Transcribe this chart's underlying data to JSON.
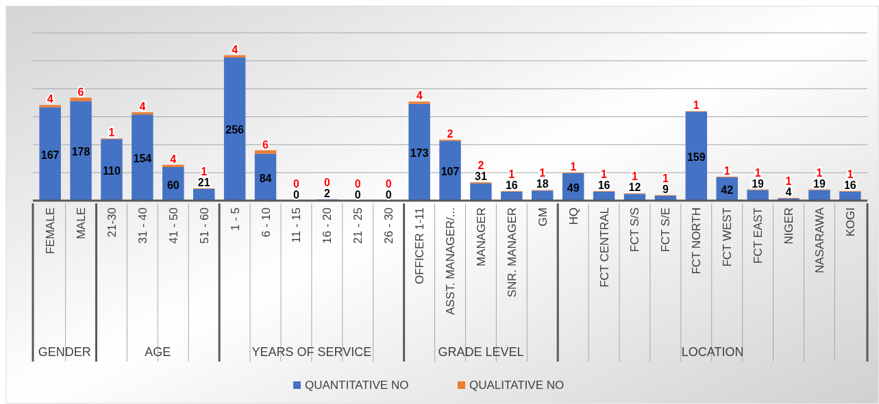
{
  "chart_data": {
    "type": "bar",
    "stacked": true,
    "data_labels": true,
    "grid": "y",
    "legend": "bottom",
    "tick_labels": "x",
    "categories": [
      "FEMALE",
      "MALE",
      "21-30",
      "31 - 40",
      "41 - 50",
      "51 - 60",
      "1 - 5",
      "6 - 10",
      "11 - 15",
      "16 - 20",
      "21 - 25",
      "26 - 30",
      "OFFICER 1-11",
      "ASST. MANAGER/...",
      "MANAGER",
      "SNR. MANAGER",
      "GM",
      "HQ",
      "FCT CENTRAL",
      "FCT S/S",
      "FCT S/E",
      "FCT NORTH",
      "FCT WEST",
      "FCT EAST",
      "NIGER",
      "NASARAWA",
      "KOGI"
    ],
    "series": [
      {
        "name": "QUANTITATIVE NO",
        "color": "#4472c4",
        "values": [
          167,
          178,
          110,
          154,
          60,
          21,
          256,
          84,
          0,
          2,
          0,
          0,
          173,
          107,
          31,
          16,
          18,
          49,
          16,
          12,
          9,
          159,
          42,
          19,
          4,
          19,
          16
        ]
      },
      {
        "name": "QUALITATIVE NO",
        "color": "#ed7d31",
        "values": [
          4,
          6,
          1,
          4,
          4,
          1,
          4,
          6,
          0,
          0,
          0,
          0,
          4,
          2,
          2,
          1,
          1,
          1,
          1,
          1,
          1,
          1,
          1,
          1,
          1,
          1,
          1
        ]
      }
    ],
    "ylim": [
      0,
      300
    ],
    "yticks": [
      {
        "value": 0,
        "label": null
      },
      {
        "value": 50,
        "label": null
      },
      {
        "value": 100,
        "label": null
      },
      {
        "value": 150,
        "label": null
      },
      {
        "value": 200,
        "label": null
      },
      {
        "value": 250,
        "label": null
      },
      {
        "value": 300,
        "label": null
      }
    ],
    "annotations": [
      "GENDER",
      "AGE",
      "YEARS OF SERVICE",
      "GRADE LEVEL",
      "LOCATION"
    ]
  }
}
